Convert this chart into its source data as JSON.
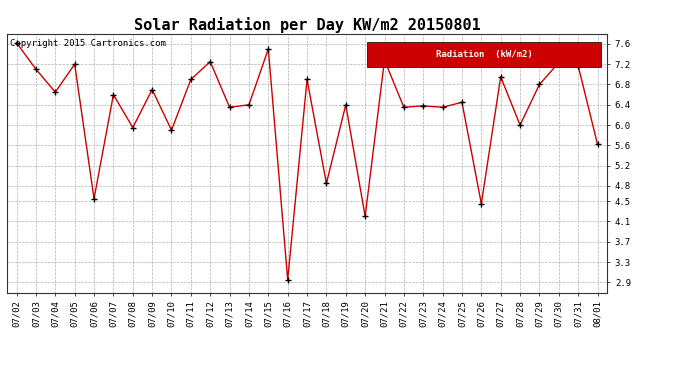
{
  "title": "Solar Radiation per Day KW/m2 20150801",
  "copyright": "Copyright 2015 Cartronics.com",
  "legend_label": "Radiation  (kW/m2)",
  "dates": [
    "07/02",
    "07/03",
    "07/04",
    "07/05",
    "07/06",
    "07/07",
    "07/08",
    "07/09",
    "07/10",
    "07/11",
    "07/12",
    "07/13",
    "07/14",
    "07/15",
    "07/16",
    "07/17",
    "07/18",
    "07/19",
    "07/20",
    "07/21",
    "07/22",
    "07/23",
    "07/24",
    "07/25",
    "07/26",
    "07/27",
    "07/28",
    "07/29",
    "07/30",
    "07/31",
    "08/01"
  ],
  "values": [
    7.62,
    7.1,
    6.65,
    7.2,
    4.55,
    6.6,
    5.95,
    6.7,
    5.9,
    6.9,
    7.25,
    6.35,
    6.4,
    7.5,
    2.95,
    6.9,
    4.85,
    6.4,
    4.2,
    7.28,
    6.35,
    6.38,
    6.35,
    6.45,
    4.45,
    6.95,
    6.0,
    6.8,
    7.23,
    7.17,
    5.62
  ],
  "yticks": [
    2.9,
    3.3,
    3.7,
    4.1,
    4.5,
    4.8,
    5.2,
    5.6,
    6.0,
    6.4,
    6.8,
    7.2,
    7.6
  ],
  "ymin": 2.7,
  "ymax": 7.8,
  "line_color": "#cc0000",
  "marker_color": "#000000",
  "bg_color": "#ffffff",
  "grid_color": "#b0b0b0",
  "legend_bg": "#cc0000",
  "legend_text_color": "#ffffff",
  "title_fontsize": 11,
  "tick_fontsize": 6.5,
  "copyright_fontsize": 6.5
}
